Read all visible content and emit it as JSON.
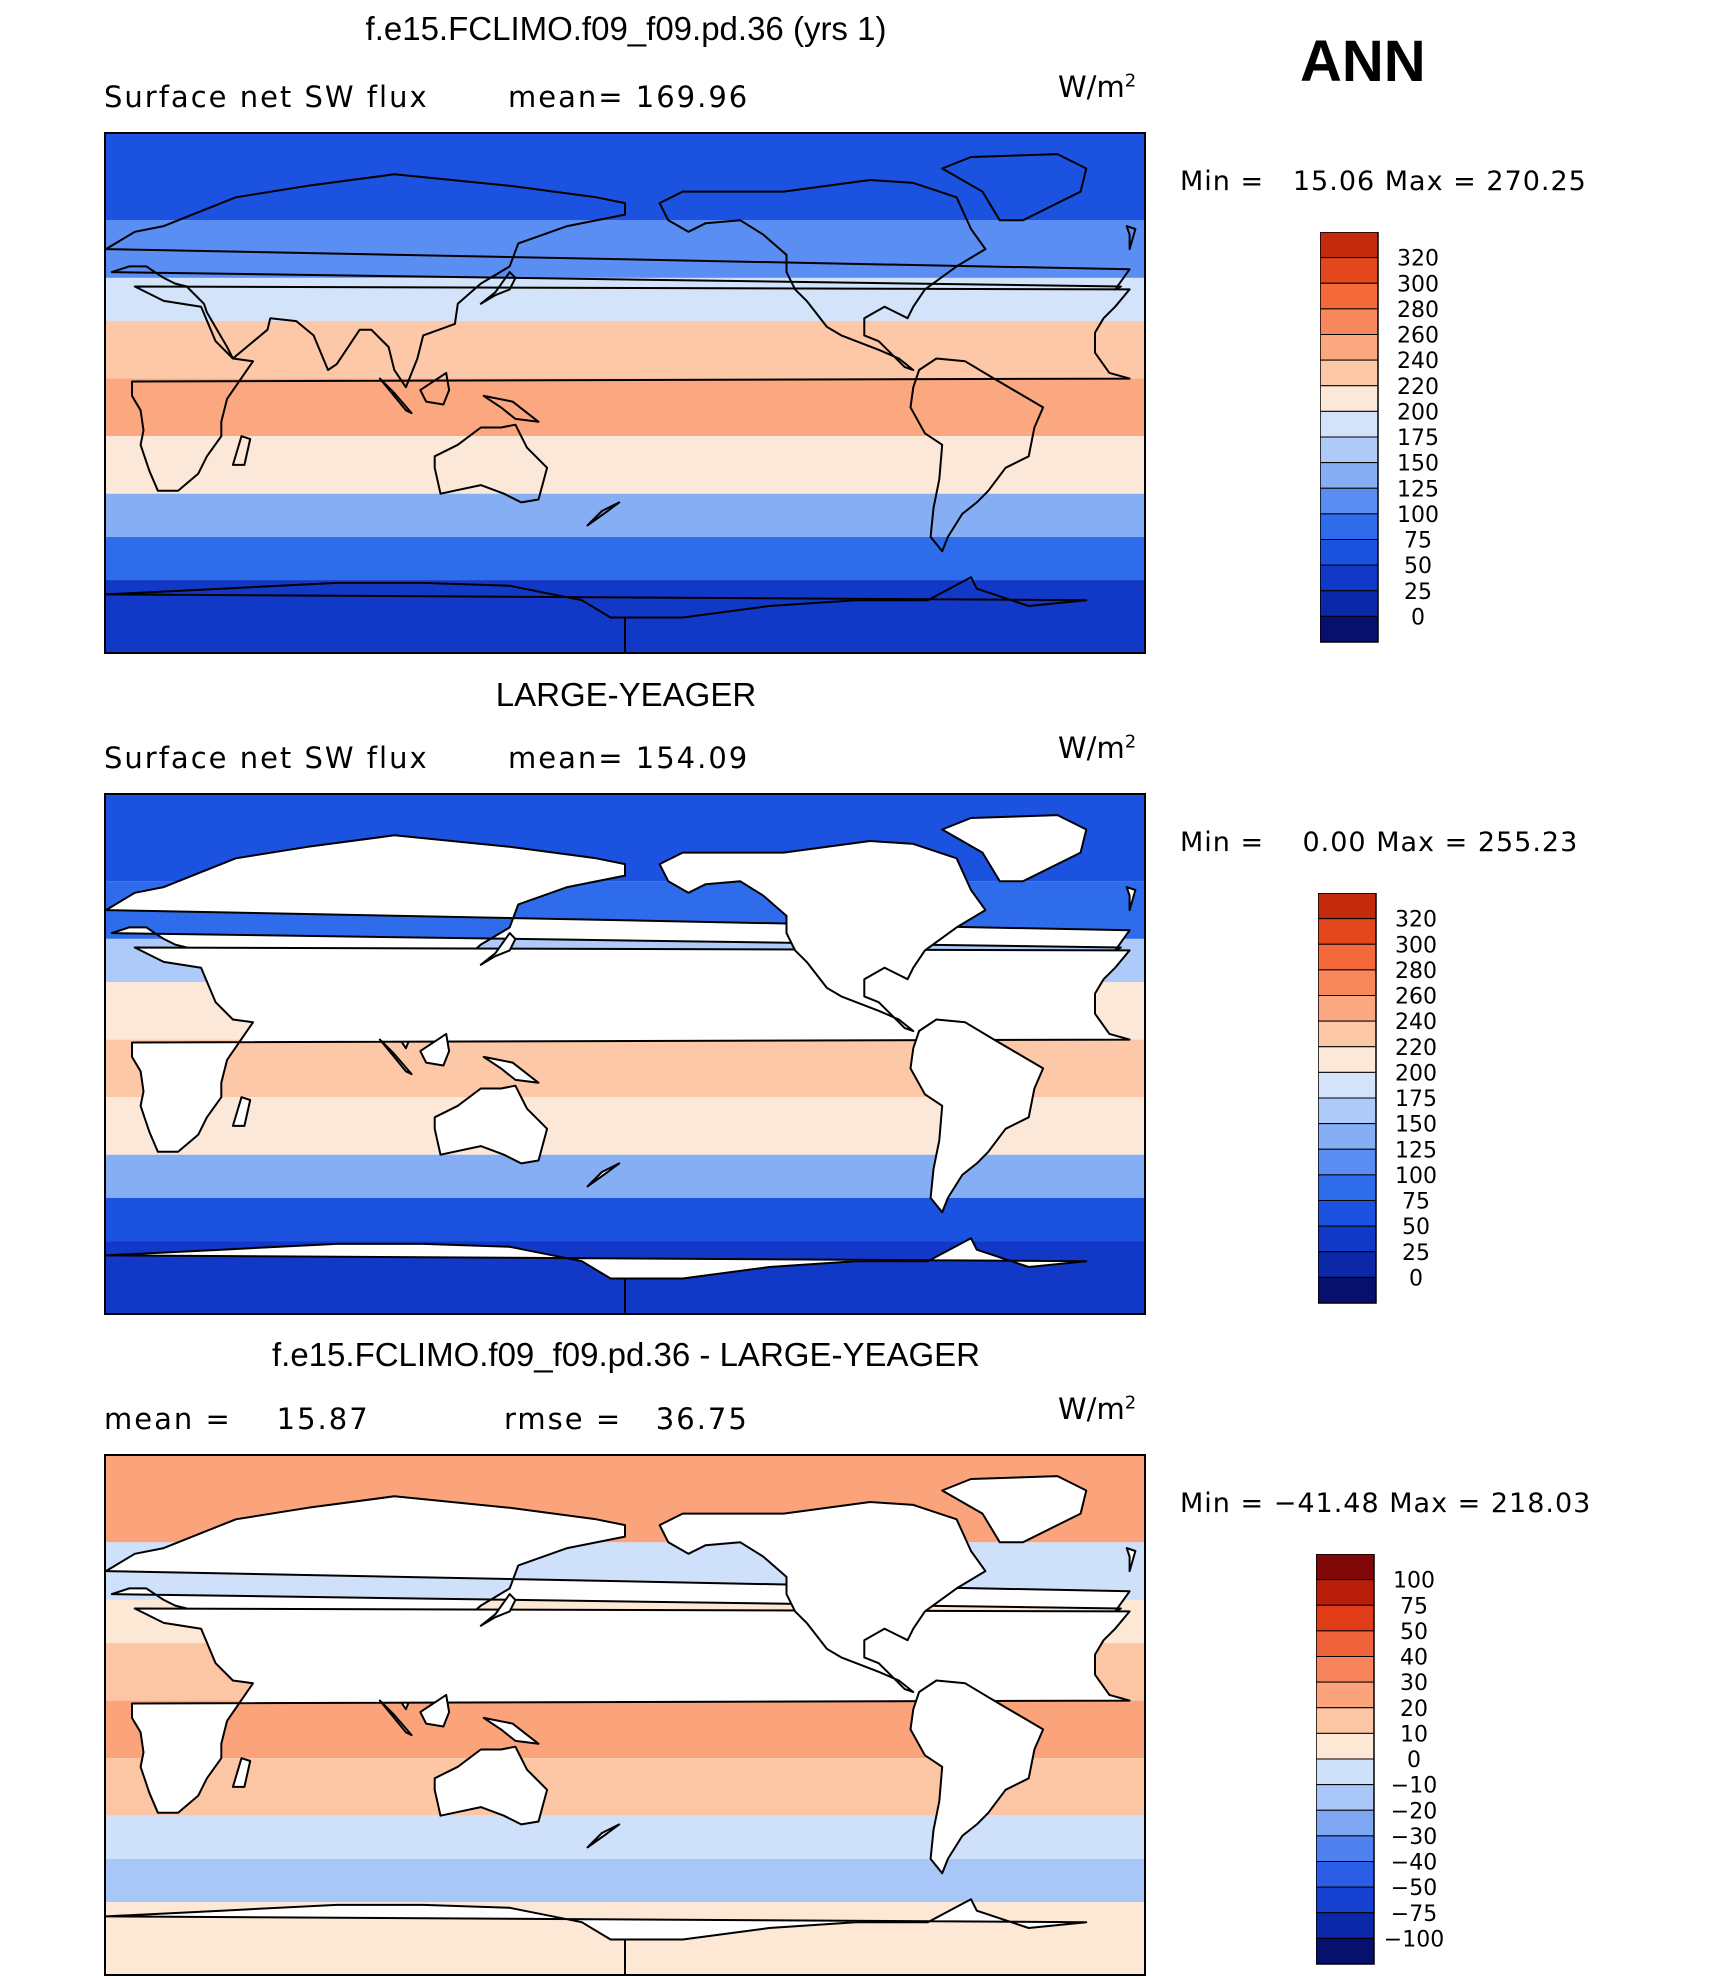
{
  "season": "ANN",
  "colors": {
    "abs_scale": [
      "#08106e",
      "#0a28a8",
      "#1238c8",
      "#1c52e0",
      "#2f6ceb",
      "#5a8ef2",
      "#86aef5",
      "#aecaf8",
      "#d2e3fa",
      "#fbe8d8",
      "#fcc8a8",
      "#fba880",
      "#f8875c",
      "#f46a3a",
      "#e2481c",
      "#c42a0c",
      "#8c0a08"
    ],
    "diff_scale": [
      "#08106e",
      "#0a28a8",
      "#1640d0",
      "#2a5ee6",
      "#4f82ef",
      "#7ea6f3",
      "#a8c6f7",
      "#cfe0fa",
      "#fde8d6",
      "#fcc6a4",
      "#fba47c",
      "#f7845a",
      "#f0623a",
      "#e03c18",
      "#b81e0a",
      "#800808"
    ],
    "land_fill": "#ffffff",
    "coastline": "#000000"
  },
  "panels": [
    {
      "title": "f.e15.FCLIMO.f09_f09.pd.36 (yrs 1)",
      "left_label": "Surface net SW flux",
      "mid_label": "mean= 169.96",
      "units": "W/m",
      "units_sup": "2",
      "min_text": "Min =",
      "min_value": "15.06",
      "max_text": "Max =",
      "max_value": "270.25",
      "colorbar_labels": [
        "320",
        "300",
        "280",
        "260",
        "240",
        "220",
        "200",
        "175",
        "150",
        "125",
        "100",
        "75",
        "50",
        "25",
        "0"
      ]
    },
    {
      "title": "LARGE-YEAGER",
      "left_label": "Surface net SW flux",
      "mid_label": "mean= 154.09",
      "units": "W/m",
      "units_sup": "2",
      "min_text": "Min =",
      "min_value": "0.00",
      "max_text": "Max =",
      "max_value": "255.23",
      "colorbar_labels": [
        "320",
        "300",
        "280",
        "260",
        "240",
        "220",
        "200",
        "175",
        "150",
        "125",
        "100",
        "75",
        "50",
        "25",
        "0"
      ]
    },
    {
      "title": "f.e15.FCLIMO.f09_f09.pd.36 - LARGE-YEAGER",
      "left_label": "mean =",
      "left_value": "15.87",
      "mid_label": "rmse =",
      "mid_value": "36.75",
      "units": "W/m",
      "units_sup": "2",
      "min_text": "Min =",
      "min_value": "−41.48",
      "max_text": "Max =",
      "max_value": "218.03",
      "colorbar_labels": [
        "100",
        "75",
        "50",
        "40",
        "30",
        "20",
        "10",
        "0",
        "−10",
        "−20",
        "−30",
        "−40",
        "−50",
        "−75",
        "−100"
      ]
    }
  ],
  "chart_data": [
    {
      "type": "heatmap",
      "title": "f.e15.FCLIMO.f09_f09.pd.36 (yrs 1)",
      "variable": "Surface net SW flux",
      "units": "W/m2",
      "mean": 169.96,
      "min": 15.06,
      "max": 270.25,
      "contour_levels": [
        0,
        25,
        50,
        75,
        100,
        125,
        150,
        175,
        200,
        220,
        240,
        260,
        280,
        300,
        320
      ],
      "zonal_bands": [
        {
          "lat_range": [
            60,
            90
          ],
          "value": 50
        },
        {
          "lat_range": [
            40,
            60
          ],
          "value": 100
        },
        {
          "lat_range": [
            25,
            40
          ],
          "value": 175
        },
        {
          "lat_range": [
            5,
            25
          ],
          "value": 230
        },
        {
          "lat_range": [
            -15,
            5
          ],
          "value": 245
        },
        {
          "lat_range": [
            -35,
            -15
          ],
          "value": 215
        },
        {
          "lat_range": [
            -50,
            -35
          ],
          "value": 140
        },
        {
          "lat_range": [
            -65,
            -50
          ],
          "value": 75
        },
        {
          "lat_range": [
            -90,
            -65
          ],
          "value": 40
        }
      ]
    },
    {
      "type": "heatmap",
      "title": "LARGE-YEAGER",
      "variable": "Surface net SW flux",
      "units": "W/m2",
      "mean": 154.09,
      "min": 0.0,
      "max": 255.23,
      "contour_levels": [
        0,
        25,
        50,
        75,
        100,
        125,
        150,
        175,
        200,
        220,
        240,
        260,
        280,
        300,
        320
      ],
      "zonal_bands": [
        {
          "lat_range": [
            60,
            90
          ],
          "value": 50
        },
        {
          "lat_range": [
            40,
            60
          ],
          "value": 90
        },
        {
          "lat_range": [
            25,
            40
          ],
          "value": 160
        },
        {
          "lat_range": [
            5,
            25
          ],
          "value": 215
        },
        {
          "lat_range": [
            -15,
            5
          ],
          "value": 230
        },
        {
          "lat_range": [
            -35,
            -15
          ],
          "value": 205
        },
        {
          "lat_range": [
            -50,
            -35
          ],
          "value": 130
        },
        {
          "lat_range": [
            -65,
            -50
          ],
          "value": 70
        },
        {
          "lat_range": [
            -90,
            -65
          ],
          "value": 40
        }
      ]
    },
    {
      "type": "heatmap",
      "title": "f.e15.FCLIMO.f09_f09.pd.36 - LARGE-YEAGER",
      "units": "W/m2",
      "mean": 15.87,
      "rmse": 36.75,
      "min": -41.48,
      "max": 218.03,
      "contour_levels": [
        -100,
        -75,
        -50,
        -40,
        -30,
        -20,
        -10,
        0,
        10,
        20,
        30,
        40,
        50,
        75,
        100
      ],
      "zonal_bands": [
        {
          "lat_range": [
            60,
            90
          ],
          "value": 20
        },
        {
          "lat_range": [
            40,
            60
          ],
          "value": -5
        },
        {
          "lat_range": [
            25,
            40
          ],
          "value": 5
        },
        {
          "lat_range": [
            5,
            25
          ],
          "value": 15
        },
        {
          "lat_range": [
            -15,
            5
          ],
          "value": 20
        },
        {
          "lat_range": [
            -35,
            -15
          ],
          "value": 12
        },
        {
          "lat_range": [
            -50,
            -35
          ],
          "value": -8
        },
        {
          "lat_range": [
            -65,
            -50
          ],
          "value": -12
        },
        {
          "lat_range": [
            -90,
            -65
          ],
          "value": 5
        }
      ]
    }
  ]
}
